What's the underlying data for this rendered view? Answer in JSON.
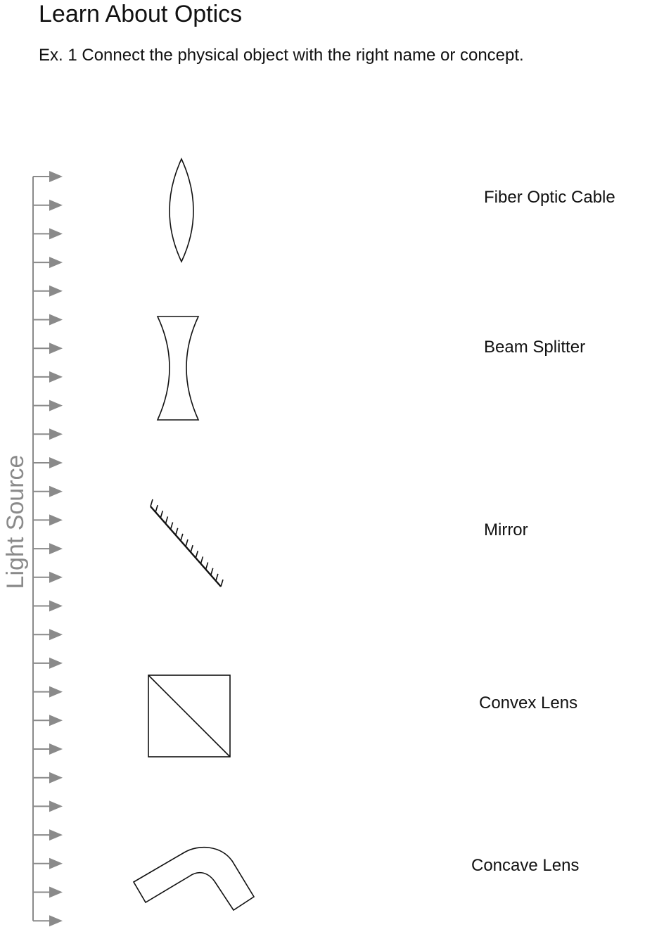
{
  "header": {
    "title": "Learn About Optics",
    "instructions": "Ex. 1 Connect the physical object with the right name or concept."
  },
  "light_source": {
    "label": "Light Source",
    "color": "#8a8a8a",
    "arrow_count": 27
  },
  "objects": [
    {
      "name": "convex-lens-symbol"
    },
    {
      "name": "concave-lens-symbol"
    },
    {
      "name": "mirror-symbol"
    },
    {
      "name": "beam-splitter-symbol"
    },
    {
      "name": "fiber-optic-cable-symbol"
    }
  ],
  "labels": [
    {
      "text": "Fiber Optic Cable"
    },
    {
      "text": "Beam Splitter"
    },
    {
      "text": "Mirror"
    },
    {
      "text": "Convex Lens"
    },
    {
      "text": "Concave Lens"
    }
  ]
}
